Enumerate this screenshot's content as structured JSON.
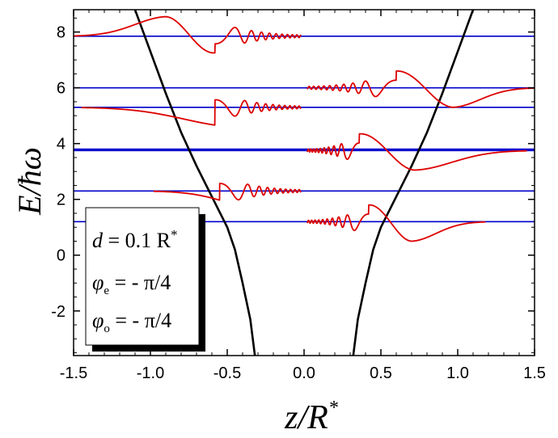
{
  "chart_data": {
    "type": "line",
    "xlabel": {
      "main": "z/R",
      "sup": "*"
    },
    "ylabel": "E/ħω",
    "xlim": [
      -1.5,
      1.5
    ],
    "ylim": [
      -3.6,
      8.8
    ],
    "xticks": [
      "-1.5",
      "-1.0",
      "-0.5",
      "0.0",
      "0.5",
      "1.0",
      "1.5"
    ],
    "yticks": [
      "-2",
      "0",
      "2",
      "4",
      "6",
      "8"
    ],
    "grid": false,
    "energy_levels": [
      1.2,
      2.3,
      3.75,
      3.8,
      5.3,
      6.0,
      7.85
    ],
    "potential": {
      "color": "#000000",
      "left_branch": [
        [
          -1.1,
          8.8
        ],
        [
          -1.0,
          7.3
        ],
        [
          -0.9,
          5.8
        ],
        [
          -0.8,
          4.4
        ],
        [
          -0.7,
          3.2
        ],
        [
          -0.6,
          2.1
        ],
        [
          -0.5,
          1.0
        ],
        [
          -0.45,
          0.2
        ],
        [
          -0.4,
          -1.0
        ],
        [
          -0.35,
          -2.3
        ],
        [
          -0.32,
          -3.6
        ]
      ],
      "right_branch": [
        [
          0.32,
          -3.6
        ],
        [
          0.35,
          -2.3
        ],
        [
          0.4,
          -1.0
        ],
        [
          0.45,
          0.2
        ],
        [
          0.5,
          1.0
        ],
        [
          0.6,
          2.1
        ],
        [
          0.7,
          3.2
        ],
        [
          0.8,
          4.4
        ],
        [
          0.9,
          5.8
        ],
        [
          1.0,
          7.3
        ],
        [
          1.1,
          8.8
        ]
      ]
    },
    "wavefunctions": [
      {
        "side": "right",
        "level": 1.2,
        "pos_lobe": [
          0.42,
          0.7
        ],
        "decay_end": 1.18
      },
      {
        "side": "left",
        "level": 2.3,
        "pos_lobe": [
          -0.55,
          -0.25
        ],
        "decay_end": -0.98
      },
      {
        "side": "right",
        "level": 3.75,
        "pos_lobe": [
          0.36,
          0.72
        ],
        "decay_end": 1.45
      },
      {
        "side": "left",
        "level": 5.3,
        "pos_lobe": [
          -0.58,
          -0.45
        ],
        "decay_end": -1.45
      },
      {
        "side": "right",
        "level": 6.0,
        "pos_lobe": [
          0.6,
          0.97
        ],
        "decay_end": 1.5
      },
      {
        "side": "left",
        "level": 7.85,
        "pos_lobe": [
          -0.58,
          -0.9
        ],
        "decay_end": -1.5
      }
    ],
    "colors": {
      "levels": "#0000cc",
      "wavefunction": "#dd0000",
      "potential": "#000000"
    },
    "legend": {
      "placement": "bottom-left",
      "line1": {
        "var": "d",
        "rest": " = 0.1 R",
        "sup": "*"
      },
      "line2": {
        "var": "φ",
        "sub": "e",
        "rest": " = - π/4"
      },
      "line3": {
        "var": "φ",
        "sub": "o",
        "rest": " = - π/4"
      }
    }
  }
}
